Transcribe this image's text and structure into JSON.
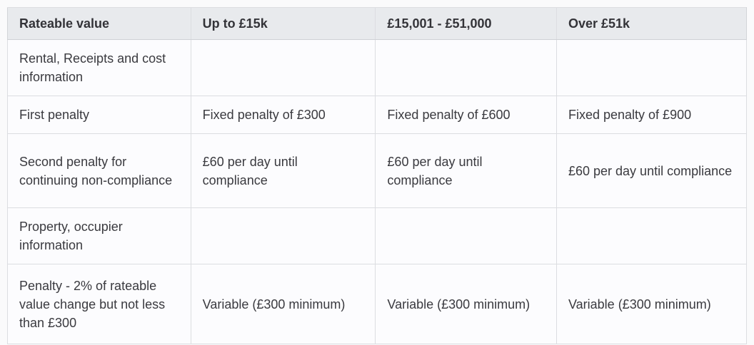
{
  "table": {
    "columns": [
      "Rateable value",
      "Up to £15k",
      "£15,001 - £51,000",
      "Over £51k"
    ],
    "rows": [
      {
        "label": "Rental, Receipts and cost information",
        "cells": [
          "",
          "",
          ""
        ]
      },
      {
        "label": "First penalty",
        "cells": [
          "Fixed penalty of £300",
          "Fixed penalty of £600",
          "Fixed penalty of £900"
        ]
      },
      {
        "label": "Second penalty for continuing non-compliance",
        "cells": [
          "£60 per day until compliance",
          "£60 per day until compliance",
          "£60 per day until compliance"
        ]
      },
      {
        "label": "Property, occupier information",
        "cells": [
          "",
          "",
          ""
        ]
      },
      {
        "label": "Penalty - 2% of rateable value change but not less than £300",
        "cells": [
          "Variable (£300 minimum)",
          "Variable (£300 minimum)",
          "Variable (£300 minimum)"
        ]
      }
    ],
    "colors": {
      "header_bg": "#e8eaed",
      "body_bg": "#fcfcfe",
      "border": "#dcdde1",
      "outer_border": "#d2d4d8",
      "text": "#3a3a3f",
      "header_text": "#333338",
      "page_bg": "#fafafb"
    }
  }
}
